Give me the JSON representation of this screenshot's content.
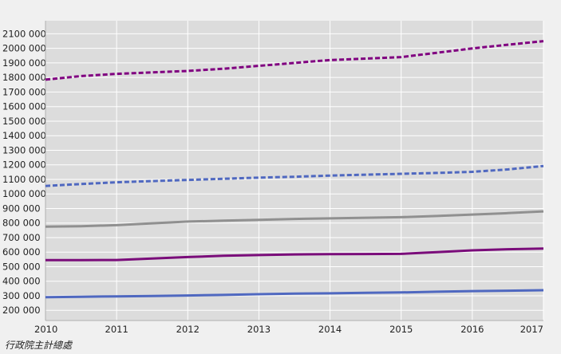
{
  "chart_data": {
    "type": "line",
    "title": "",
    "xlabel": "",
    "ylabel": "",
    "x_ticks": [
      "2010",
      "2011",
      "2012",
      "2013",
      "2014",
      "2015",
      "2016",
      "2017"
    ],
    "y_ticks": [
      "200 000",
      "300 000",
      "400 000",
      "500 000",
      "600 000",
      "700 000",
      "800 000",
      "900 000",
      "1000 000",
      "1100 000",
      "1200 000",
      "1300 000",
      "1400 000",
      "1500 000",
      "1600 000",
      "1700 000",
      "1800 000",
      "1900 000",
      "2000 000",
      "2100 000"
    ],
    "xlim": [
      2010,
      2017
    ],
    "ylim": [
      130000,
      2190000
    ],
    "grid": true,
    "series": [
      {
        "color": "#800080",
        "style": "dashed",
        "x": [
          2010,
          2010.5,
          2011,
          2011.5,
          2012,
          2012.5,
          2013,
          2013.5,
          2014,
          2014.5,
          2015,
          2015.5,
          2016,
          2016.5,
          2017
        ],
        "y": [
          1785000,
          1810000,
          1825000,
          1835000,
          1845000,
          1860000,
          1880000,
          1900000,
          1920000,
          1930000,
          1940000,
          1970000,
          2000000,
          2025000,
          2050000
        ]
      },
      {
        "color": "#4f68c0",
        "style": "dashed",
        "x": [
          2010,
          2010.5,
          2011,
          2011.5,
          2012,
          2012.5,
          2013,
          2013.5,
          2014,
          2014.5,
          2015,
          2015.5,
          2016,
          2016.5,
          2017
        ],
        "y": [
          1055000,
          1068000,
          1080000,
          1088000,
          1096000,
          1104000,
          1112000,
          1118000,
          1126000,
          1132000,
          1138000,
          1144000,
          1152000,
          1168000,
          1192000
        ]
      },
      {
        "color": "#909090",
        "style": "solid",
        "x": [
          2010,
          2010.5,
          2011,
          2011.5,
          2012,
          2012.5,
          2013,
          2013.5,
          2014,
          2014.5,
          2015,
          2015.5,
          2016,
          2016.5,
          2017
        ],
        "y": [
          775000,
          778000,
          785000,
          798000,
          810000,
          816000,
          822000,
          828000,
          832000,
          836000,
          840000,
          848000,
          858000,
          868000,
          880000
        ]
      },
      {
        "color": "#7a0c7a",
        "style": "solid",
        "x": [
          2010,
          2010.5,
          2011,
          2011.5,
          2012,
          2012.5,
          2013,
          2013.5,
          2014,
          2014.5,
          2015,
          2015.5,
          2016,
          2016.5,
          2017
        ],
        "y": [
          545000,
          545000,
          546000,
          556000,
          566000,
          575000,
          580000,
          584000,
          586000,
          587000,
          588000,
          600000,
          612000,
          620000,
          624000
        ]
      },
      {
        "color": "#4f68c0",
        "style": "solid",
        "x": [
          2010,
          2010.5,
          2011,
          2011.5,
          2012,
          2012.5,
          2013,
          2013.5,
          2014,
          2014.5,
          2015,
          2015.5,
          2016,
          2016.5,
          2017
        ],
        "y": [
          290000,
          293000,
          296000,
          299000,
          302000,
          306000,
          311000,
          315000,
          317000,
          320000,
          323000,
          328000,
          332000,
          335000,
          338000
        ]
      }
    ]
  },
  "source_label": "行政院主計總處"
}
